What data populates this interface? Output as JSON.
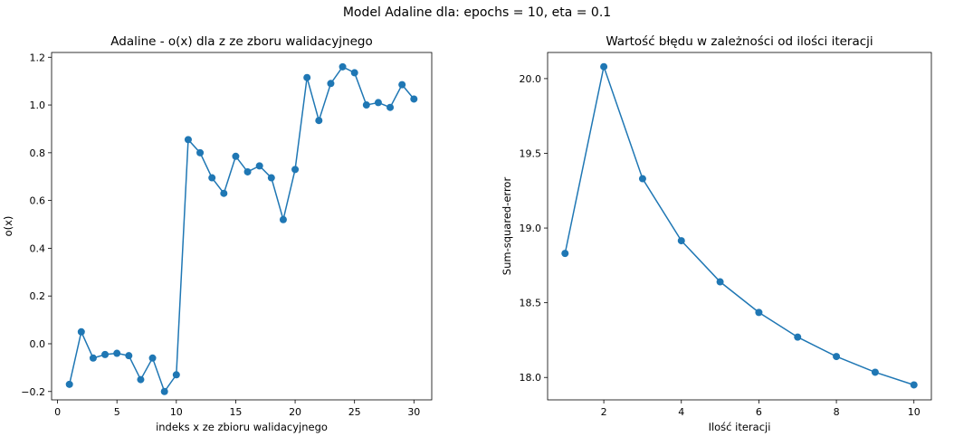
{
  "suptitle": "Model Adaline dla: epochs = 10, eta = 0.1",
  "chart_data": [
    {
      "type": "line",
      "title": "Adaline - o(x) dla z ze zboru walidacyjnego",
      "xlabel": "indeks x ze zbioru walidacyjnego",
      "ylabel": "o(x)",
      "xlim": [
        -0.5,
        31.5
      ],
      "ylim": [
        -0.235,
        1.22
      ],
      "xticks": [
        0,
        5,
        10,
        15,
        20,
        25,
        30
      ],
      "yticks": [
        -0.2,
        0.0,
        0.2,
        0.4,
        0.6,
        0.8,
        1.0,
        1.2
      ],
      "ytick_labels": [
        "−0.2",
        "0.0",
        "0.2",
        "0.4",
        "0.6",
        "0.8",
        "1.0",
        "1.2"
      ],
      "grid": false,
      "color": "#1f77b4",
      "marker": "circle",
      "x": [
        1,
        2,
        3,
        4,
        5,
        6,
        7,
        8,
        9,
        10,
        11,
        12,
        13,
        14,
        15,
        16,
        17,
        18,
        19,
        20,
        21,
        22,
        23,
        24,
        25,
        26,
        27,
        28,
        29,
        30
      ],
      "y": [
        -0.17,
        0.05,
        -0.06,
        -0.045,
        -0.04,
        -0.05,
        -0.15,
        -0.06,
        -0.2,
        -0.13,
        0.855,
        0.8,
        0.695,
        0.63,
        0.785,
        0.72,
        0.745,
        0.695,
        0.52,
        0.73,
        1.115,
        0.935,
        1.09,
        1.16,
        1.135,
        1.0,
        1.01,
        0.99,
        1.085,
        1.025
      ]
    },
    {
      "type": "line",
      "title": "Wartość błędu w zależności od ilości iteracji",
      "xlabel": "Ilość iteracji",
      "ylabel": "Sum-squared-error",
      "xlim": [
        0.55,
        10.45
      ],
      "ylim": [
        17.85,
        20.175
      ],
      "xticks": [
        2,
        4,
        6,
        8,
        10
      ],
      "yticks": [
        18.0,
        18.5,
        19.0,
        19.5,
        20.0
      ],
      "ytick_labels": [
        "18.0",
        "18.5",
        "19.0",
        "19.5",
        "20.0"
      ],
      "grid": false,
      "color": "#1f77b4",
      "marker": "circle",
      "x": [
        1,
        2,
        3,
        4,
        5,
        6,
        7,
        8,
        9,
        10
      ],
      "y": [
        18.83,
        20.08,
        19.33,
        18.915,
        18.64,
        18.435,
        18.27,
        18.14,
        18.035,
        17.95
      ]
    }
  ]
}
